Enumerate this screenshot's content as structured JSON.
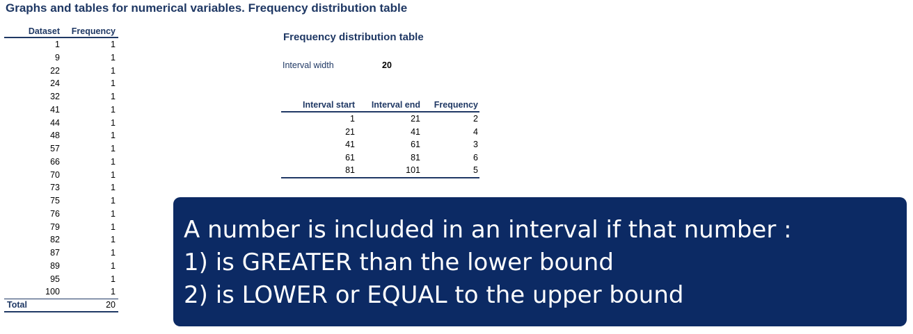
{
  "page_title": "Graphs and tables for numerical variables. Frequency distribution table",
  "dataset_table": {
    "headers": [
      "Dataset",
      "Frequency"
    ],
    "rows": [
      [
        "1",
        "1"
      ],
      [
        "9",
        "1"
      ],
      [
        "22",
        "1"
      ],
      [
        "24",
        "1"
      ],
      [
        "32",
        "1"
      ],
      [
        "41",
        "1"
      ],
      [
        "44",
        "1"
      ],
      [
        "48",
        "1"
      ],
      [
        "57",
        "1"
      ],
      [
        "66",
        "1"
      ],
      [
        "70",
        "1"
      ],
      [
        "73",
        "1"
      ],
      [
        "75",
        "1"
      ],
      [
        "76",
        "1"
      ],
      [
        "79",
        "1"
      ],
      [
        "82",
        "1"
      ],
      [
        "87",
        "1"
      ],
      [
        "89",
        "1"
      ],
      [
        "95",
        "1"
      ],
      [
        "100",
        "1"
      ]
    ],
    "total_label": "Total",
    "total_value": "20"
  },
  "frequency_distribution": {
    "title": "Frequency distribution table",
    "interval_width_label": "Interval width",
    "interval_width_value": "20",
    "headers": [
      "Interval start",
      "Interval end",
      "Frequency"
    ],
    "rows": [
      [
        "1",
        "21",
        "2"
      ],
      [
        "21",
        "41",
        "4"
      ],
      [
        "41",
        "61",
        "3"
      ],
      [
        "61",
        "81",
        "6"
      ],
      [
        "81",
        "101",
        "5"
      ]
    ]
  },
  "callout": {
    "line1": "A number is included in an interval if that number :",
    "line2": "1) is GREATER than the lower bound",
    "line3": "2) is LOWER or EQUAL to the upper bound",
    "background_color": "#0c2a64"
  },
  "colors": {
    "heading": "#1f3864",
    "rule": "#1f3864"
  }
}
